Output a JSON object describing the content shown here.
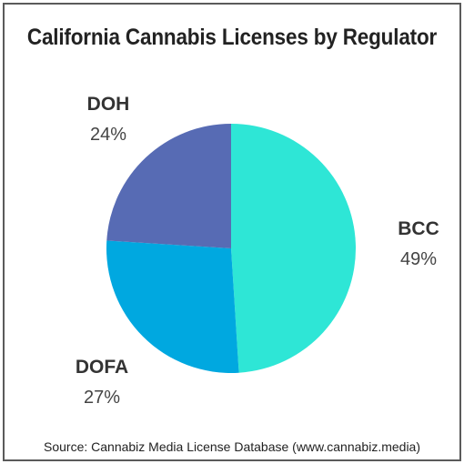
{
  "chart_data": {
    "type": "pie",
    "title": "California Cannabis Licenses by Regulator",
    "source": "Source: Cannabiz Media License Database (www.cannabiz.media)",
    "slices": [
      {
        "label": "BCC",
        "percent_label": "49%",
        "value": 49,
        "color": "#2ee6d6"
      },
      {
        "label": "DOFA",
        "percent_label": "27%",
        "value": 27,
        "color": "#00a8e0"
      },
      {
        "label": "DOH",
        "percent_label": "24%",
        "value": 24,
        "color": "#576bb4"
      }
    ]
  }
}
